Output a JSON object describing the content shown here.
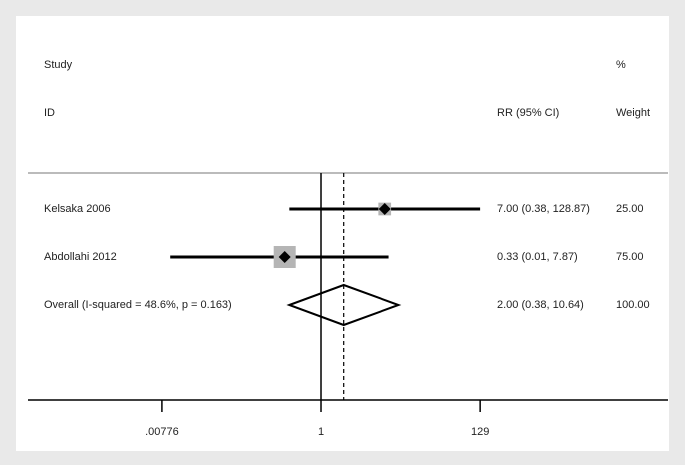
{
  "chart_data": {
    "type": "forest",
    "headers": {
      "study_top": "Study",
      "study_bottom": "ID",
      "effect": "RR (95% CI)",
      "weight_top": "%",
      "weight_bottom": "Weight"
    },
    "studies": [
      {
        "name": "Kelsaka 2006",
        "rr": 7.0,
        "ci_low": 0.38,
        "ci_high": 128.87,
        "rr_label": "7.00 (0.38, 128.87)",
        "weight": 25,
        "weight_label": "25.00"
      },
      {
        "name": "Abdollahi 2012",
        "rr": 0.33,
        "ci_low": 0.01,
        "ci_high": 7.87,
        "rr_label": "0.33 (0.01, 7.87)",
        "weight": 75,
        "weight_label": "75.00"
      }
    ],
    "overall": {
      "name": "Overall  (I-squared = 48.6%, p = 0.163)",
      "rr": 2.0,
      "ci_low": 0.38,
      "ci_high": 10.64,
      "rr_label": "2.00 (0.38, 10.64)",
      "weight": 100,
      "weight_label": "100.00"
    },
    "reference_line": 1,
    "log_x": true,
    "xlim": [
      0.00013,
      40000
    ],
    "xticks": [
      {
        "value": 0.00776,
        "label": ".00776"
      },
      1,
      129
    ]
  }
}
